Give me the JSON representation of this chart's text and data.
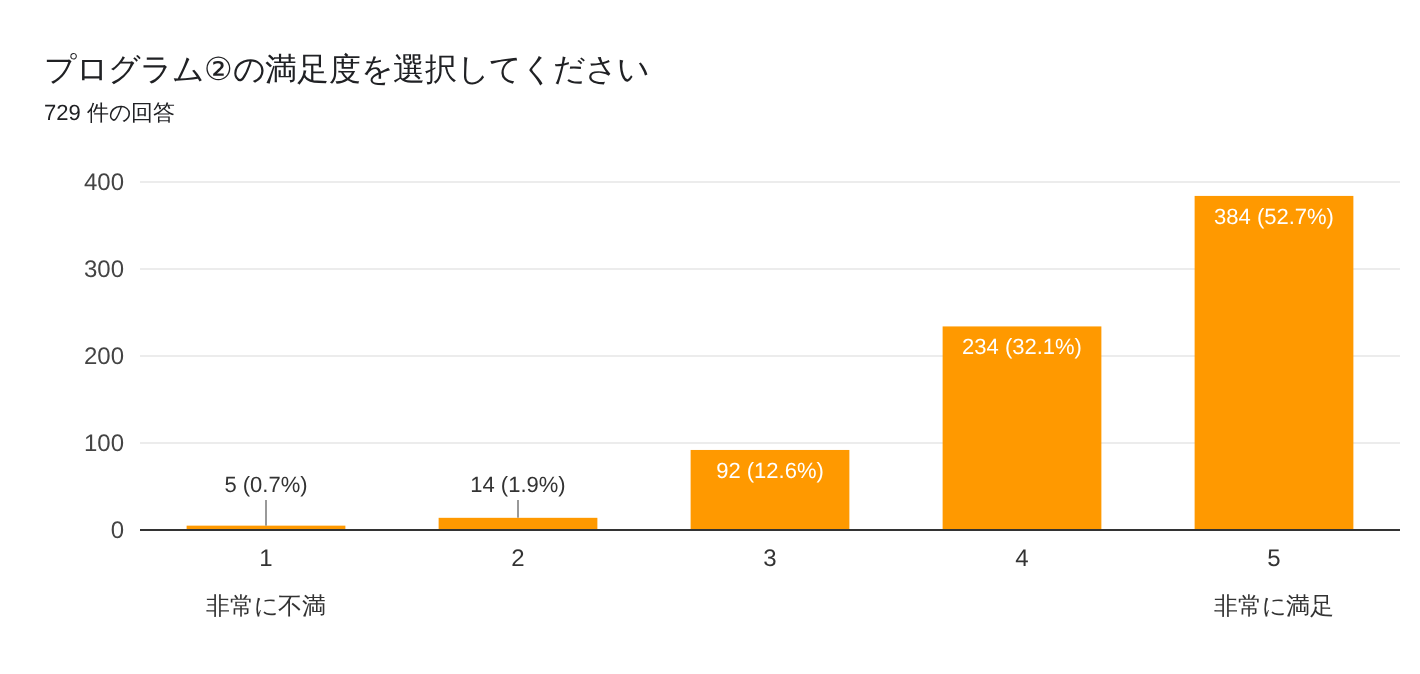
{
  "chart_data": {
    "type": "bar",
    "title": "プログラム②の満足度を選択してください",
    "subtitle": "729 件の回答",
    "categories": [
      "1",
      "2",
      "3",
      "4",
      "5"
    ],
    "values": [
      5,
      14,
      92,
      234,
      384
    ],
    "value_labels": [
      "5 (0.7%)",
      "14 (1.9%)",
      "92 (12.6%)",
      "234 (32.1%)",
      "384 (52.7%)"
    ],
    "color": "#ff9900",
    "ylim": [
      0,
      400
    ],
    "yticks": [
      0,
      100,
      200,
      300,
      400
    ],
    "grid": "y",
    "annotations": [
      "非常に不満",
      "非常に満足"
    ]
  }
}
